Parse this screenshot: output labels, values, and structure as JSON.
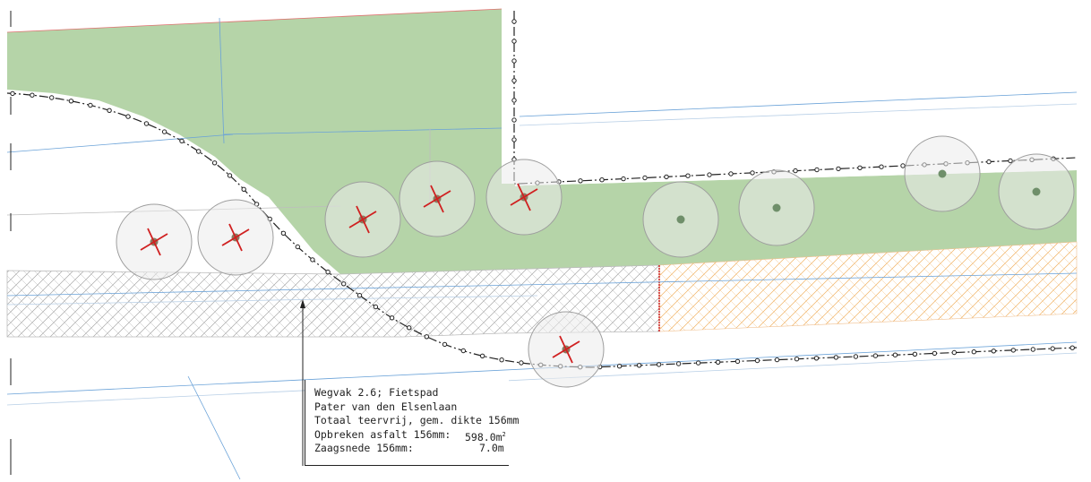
{
  "annotation": {
    "line1": "Wegvak 2.6; Fietspad",
    "line2": "Pater van den Elsenlaan",
    "line3": "Totaal teervrij, gem. dikte 156mm",
    "line4_label": "Opbreken asfalt 156mm:",
    "line4_value": "598.0m",
    "line4_unit_sup": "2",
    "line5_label": "Zaagsnede 156mm:",
    "line5_value": "7.0m"
  },
  "colors": {
    "green_area": "#b5d4a8",
    "hatch_grey": "#9a9a9a",
    "hatch_orange": "#f0b060",
    "cut_line": "#d02020",
    "blue_line": "#6aa2d8",
    "tree_circle": "#9e9e9e"
  },
  "icons": {
    "removed_tree": "red-cross-tree-icon",
    "kept_tree": "grey-dot-tree-icon"
  }
}
